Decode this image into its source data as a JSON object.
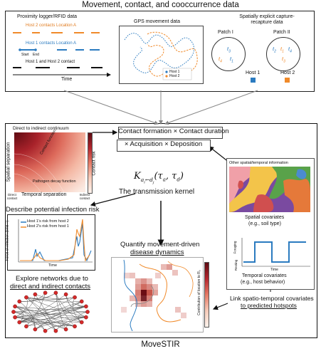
{
  "title": "Movement, contact, and cooccurrence data",
  "footer": "MoveSTIR",
  "colors": {
    "host1": "#2b7bc0",
    "host2": "#f08a2a",
    "dark": "#7a0f16",
    "heat": "#c0392b"
  },
  "top": {
    "logger": {
      "title": "Proximity logger/RFID data",
      "row1": "Host 2 contacts Location A",
      "row2": "Host 1 contacts Location A",
      "start": "Start",
      "end": "End",
      "row3": "Host 1 and Host 2 contact",
      "time": "Time"
    },
    "gps": {
      "title": "GPS movement data",
      "legend1": "Host 1",
      "legend2": "Host 2"
    },
    "capture": {
      "title": "Spatially explicit capture-recapture data",
      "patch1": "Patch I",
      "patch2": "Patch II",
      "p1_t1": "t",
      "p1_t1s": "3",
      "p1_t2": "t",
      "p1_t2s": "4",
      "p1_t3": "t",
      "p1_t3s": "1",
      "p2_a": "t",
      "p2_as": "2",
      "p2_b": "t",
      "p2_bs": "1",
      "p2_c": "t",
      "p2_cs": "4",
      "p2_d": "t",
      "p2_ds": "3",
      "host1": "Host 1",
      "host2": "Host 2"
    }
  },
  "center": {
    "formation": "Contact formation × Contact duration",
    "acquisition": "× Acquisition × Deposition",
    "kernel_main": "K",
    "kernel_sub": "a",
    "kernel_sub2": "i",
    "kernel_sub3": "←d",
    "kernel_sub4": "j",
    "kernel_args": "(τ",
    "kernel_args_a": "a",
    "kernel_args_mid": ", τ",
    "kernel_args_d": "d",
    "kernel_args_end": ")",
    "kernel_label": "The transmission kernel"
  },
  "continuum": {
    "title": "Direct to indirect continuum",
    "yaxis": "Spatial separation",
    "xaxis": "Temporal separation",
    "contact_fn": "Contact function",
    "pathogen_fn": "Pathogen decay function",
    "cbar": "Contact risk",
    "direct": "Direct contact",
    "indirect": "Indirect contact"
  },
  "risk": {
    "title": "Describe potential infection risk",
    "legend1": "Host 1's risk from host 2",
    "legend2": "Host 2's risk from host 1",
    "yaxis": "Force of infection (time⁻¹)",
    "xaxis": "Time"
  },
  "network": {
    "title1": "Explore networks due to",
    "title2": "direct and indirect contacts"
  },
  "quantify": {
    "title1": "Quantify movement-driven",
    "title2": "disease dynamics",
    "cbar": "Contribution of location to R₀"
  },
  "covariates": {
    "title": "Other spatial/temporal information",
    "spatial1": "Spatial covariates",
    "spatial2": "(e.g., soil type)",
    "foraging": "Foraging",
    "resting": "Resting",
    "time": "Time",
    "temporal1": "Temporal covariates",
    "temporal2": "(e.g., host behavior)"
  },
  "link": {
    "line1": "Link spatio-temporal covariates",
    "line2": "to predicted hotspots"
  }
}
